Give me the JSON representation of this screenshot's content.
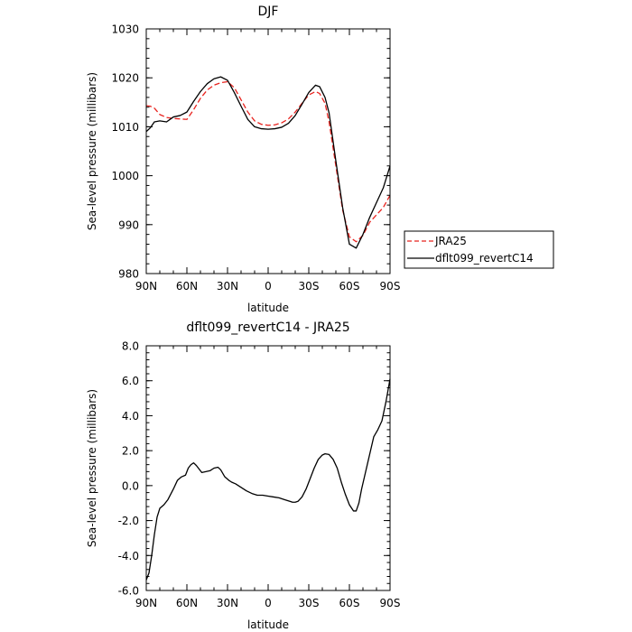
{
  "chart_data": [
    {
      "type": "line",
      "title": "DJF",
      "xlabel": "latitude",
      "ylabel": "Sea-level pressure (millibars)",
      "xlim": [
        90,
        -90
      ],
      "ylim": [
        980,
        1030
      ],
      "x_ticks": [
        90,
        60,
        30,
        0,
        -30,
        -60,
        -90
      ],
      "x_tick_labels": [
        "90N",
        "60N",
        "30N",
        "0",
        "30S",
        "60S",
        "90S"
      ],
      "y_ticks": [
        980,
        990,
        1000,
        1010,
        1020,
        1030
      ],
      "y_tick_labels": [
        "980",
        "990",
        "1000",
        "1010",
        "1020",
        "1030"
      ],
      "legend": "outside-right",
      "series": [
        {
          "name": "JRA25",
          "color": "#e8231e",
          "dash": true,
          "x": [
            90,
            87,
            84,
            80,
            75,
            70,
            65,
            60,
            55,
            50,
            45,
            40,
            35,
            30,
            25,
            20,
            15,
            10,
            5,
            0,
            -5,
            -10,
            -15,
            -20,
            -25,
            -30,
            -35,
            -38,
            -42,
            -45,
            -50,
            -55,
            -60,
            -65,
            -70,
            -75,
            -80,
            -85,
            -90
          ],
          "values": [
            1014.3,
            1014.2,
            1013.8,
            1012.5,
            1011.9,
            1011.7,
            1011.6,
            1011.5,
            1013.5,
            1015.8,
            1017.5,
            1018.5,
            1019.0,
            1019.2,
            1018.0,
            1015.5,
            1013.0,
            1011.2,
            1010.5,
            1010.3,
            1010.4,
            1010.8,
            1011.6,
            1013.0,
            1014.8,
            1016.5,
            1017.2,
            1016.8,
            1014.8,
            1011.0,
            1002.0,
            993.0,
            987.5,
            986.5,
            987.8,
            990.5,
            992.0,
            993.5,
            996.0
          ]
        },
        {
          "name": "dflt099_revertC14",
          "color": "#000000",
          "dash": false,
          "x": [
            90,
            87,
            84,
            80,
            75,
            70,
            65,
            60,
            55,
            50,
            45,
            40,
            35,
            30,
            25,
            20,
            15,
            10,
            5,
            0,
            -5,
            -10,
            -15,
            -20,
            -25,
            -30,
            -35,
            -38,
            -42,
            -45,
            -50,
            -55,
            -60,
            -65,
            -70,
            -75,
            -80,
            -85,
            -90
          ],
          "values": [
            1009.0,
            1009.8,
            1011.0,
            1011.2,
            1011.0,
            1012.0,
            1012.3,
            1013.0,
            1015.2,
            1017.2,
            1018.8,
            1019.8,
            1020.2,
            1019.5,
            1017.0,
            1014.2,
            1011.5,
            1010.0,
            1009.6,
            1009.5,
            1009.6,
            1009.9,
            1010.7,
            1012.3,
            1014.6,
            1017.0,
            1018.5,
            1018.2,
            1016.0,
            1012.8,
            1003.0,
            993.5,
            986.0,
            985.2,
            988.0,
            991.5,
            994.5,
            997.5,
            1002.0
          ]
        }
      ]
    },
    {
      "type": "line",
      "title": "dflt099_revertC14 - JRA25",
      "xlabel": "latitude",
      "ylabel": "Sea-level pressure (millibars)",
      "xlim": [
        90,
        -90
      ],
      "ylim": [
        -6,
        8
      ],
      "x_ticks": [
        90,
        60,
        30,
        0,
        -30,
        -60,
        -90
      ],
      "x_tick_labels": [
        "90N",
        "60N",
        "30N",
        "0",
        "30S",
        "60S",
        "90S"
      ],
      "y_ticks": [
        -6,
        -4,
        -2,
        0,
        2,
        4,
        6,
        8
      ],
      "y_tick_labels": [
        "-6.0",
        "-4.0",
        "-2.0",
        "0.0",
        "2.0",
        "4.0",
        "6.0",
        "8.0"
      ],
      "series": [
        {
          "color": "#000000",
          "x": [
            90,
            88,
            86,
            84,
            82,
            80,
            77,
            74,
            70,
            67,
            64,
            61,
            59,
            57,
            55,
            53,
            51,
            49,
            46,
            43,
            40,
            37,
            35,
            32,
            29,
            27,
            24,
            20,
            16,
            12,
            8,
            4,
            0,
            -4,
            -8,
            -12,
            -16,
            -18,
            -20,
            -22,
            -25,
            -28,
            -31,
            -34,
            -37,
            -40,
            -42,
            -45,
            -48,
            -51,
            -54,
            -57,
            -60,
            -63,
            -65,
            -67,
            -69,
            -72,
            -75,
            -78,
            -81,
            -84,
            -87,
            -90
          ],
          "values": [
            -5.4,
            -5.0,
            -4.0,
            -2.8,
            -1.8,
            -1.3,
            -1.1,
            -0.8,
            -0.2,
            0.3,
            0.5,
            0.6,
            1.0,
            1.2,
            1.3,
            1.15,
            0.95,
            0.75,
            0.8,
            0.85,
            1.0,
            1.05,
            0.9,
            0.5,
            0.3,
            0.2,
            0.1,
            -0.1,
            -0.3,
            -0.45,
            -0.55,
            -0.55,
            -0.6,
            -0.65,
            -0.7,
            -0.8,
            -0.9,
            -0.95,
            -0.95,
            -0.9,
            -0.65,
            -0.2,
            0.4,
            1.0,
            1.5,
            1.75,
            1.82,
            1.78,
            1.5,
            1.0,
            0.2,
            -0.5,
            -1.1,
            -1.45,
            -1.45,
            -1.0,
            -0.2,
            0.8,
            1.8,
            2.8,
            3.2,
            3.7,
            4.8,
            6.1
          ]
        }
      ]
    }
  ]
}
